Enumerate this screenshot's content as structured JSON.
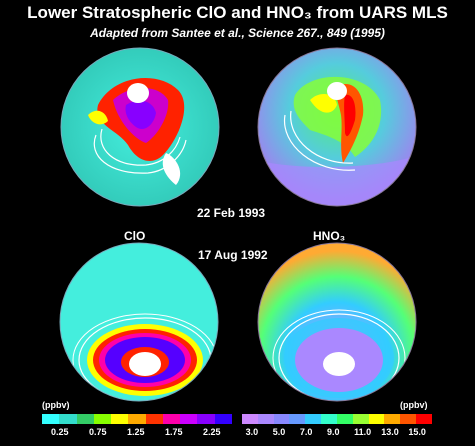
{
  "title": "Lower Stratospheric ClO and HNO₃ from UARS MLS",
  "subtitle": "Adapted from Santee et al., Science 267., 849 (1995)",
  "date_top": "22 Feb 1993",
  "date_bottom": "17 Aug 1992",
  "label_left": "ClO",
  "label_right": "HNO₃",
  "clo_scale": {
    "unit": "(ppbv)",
    "ticks": [
      "0.25",
      "0.75",
      "1.25",
      "1.75",
      "2.25"
    ],
    "colors": [
      "#33ffff",
      "#33ddcc",
      "#33cc66",
      "#88ff00",
      "#ffff00",
      "#ffaa00",
      "#ff3300",
      "#ff00aa",
      "#cc00ff",
      "#8800ff",
      "#3300ff"
    ]
  },
  "hno3_scale": {
    "unit": "(ppbv)",
    "ticks": [
      "3.0",
      "5.0",
      "7.0",
      "9.0",
      "11.0",
      "13.0",
      "15.0"
    ],
    "colors": [
      "#cc88ff",
      "#aa88ff",
      "#8888ff",
      "#6699ff",
      "#33ccff",
      "#33ffcc",
      "#33ff66",
      "#99ff33",
      "#ffff00",
      "#ffaa00",
      "#ff5500",
      "#ff0000"
    ]
  }
}
